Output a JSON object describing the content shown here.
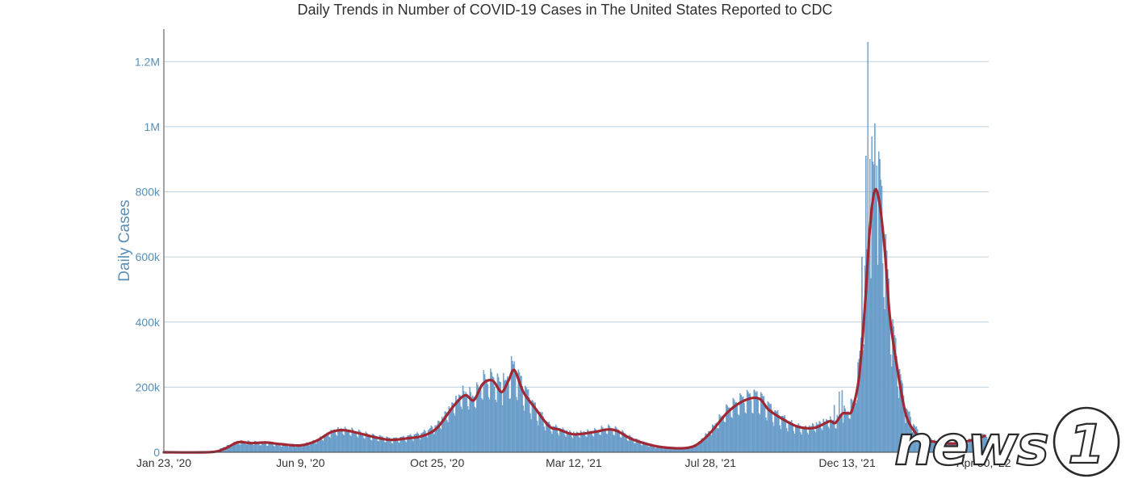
{
  "chart_data": {
    "type": "bar",
    "title": "Daily Trends in Number of COVID-19 Cases in The United States Reported to CDC",
    "xlabel": "",
    "ylabel": "Daily Cases",
    "ylim": [
      0,
      1300000
    ],
    "yticks": [
      0,
      200000,
      400000,
      600000,
      800000,
      1000000,
      1200000
    ],
    "ytick_labels": [
      "0",
      "200k",
      "400k",
      "600k",
      "800k",
      "1M",
      "1.2M"
    ],
    "xlim": [
      "2020-01-23",
      "2022-05-05"
    ],
    "xticks": [
      "2020-01-23",
      "2020-06-09",
      "2020-10-25",
      "2021-03-12",
      "2021-07-28",
      "2021-12-13",
      "2022-04-30"
    ],
    "xtick_labels": [
      "Jan 23, '20",
      "Jun 9, '20",
      "Oct 25, '20",
      "Mar 12, '21",
      "Jul 28, '21",
      "Dec 13, '21",
      "Apr 30, '22"
    ],
    "grid": true,
    "series": [
      {
        "kind": "bar",
        "color": "#7aaad3",
        "frequency": "daily",
        "start": "2020-01-23",
        "end": "2022-05-05",
        "sampled_values": [
          [
            "2020-01-23",
            0
          ],
          [
            "2020-03-01",
            200
          ],
          [
            "2020-03-15",
            3000
          ],
          [
            "2020-04-01",
            25000
          ],
          [
            "2020-04-10",
            31000
          ],
          [
            "2020-04-25",
            29000
          ],
          [
            "2020-05-10",
            26000
          ],
          [
            "2020-06-01",
            22000
          ],
          [
            "2020-06-09",
            20000
          ],
          [
            "2020-06-25",
            35000
          ],
          [
            "2020-07-10",
            60000
          ],
          [
            "2020-07-20",
            68000
          ],
          [
            "2020-08-01",
            63000
          ],
          [
            "2020-08-20",
            48000
          ],
          [
            "2020-09-10",
            38000
          ],
          [
            "2020-09-20",
            42000
          ],
          [
            "2020-10-10",
            55000
          ],
          [
            "2020-10-25",
            80000
          ],
          [
            "2020-11-10",
            140000
          ],
          [
            "2020-11-20",
            175000
          ],
          [
            "2020-12-01",
            165000
          ],
          [
            "2020-12-10",
            210000
          ],
          [
            "2020-12-20",
            215000
          ],
          [
            "2021-01-01",
            185000
          ],
          [
            "2021-01-10",
            250000
          ],
          [
            "2021-01-20",
            190000
          ],
          [
            "2021-02-01",
            130000
          ],
          [
            "2021-02-15",
            80000
          ],
          [
            "2021-03-01",
            65000
          ],
          [
            "2021-03-12",
            55000
          ],
          [
            "2021-04-01",
            62000
          ],
          [
            "2021-04-15",
            72000
          ],
          [
            "2021-04-25",
            65000
          ],
          [
            "2021-05-10",
            40000
          ],
          [
            "2021-06-01",
            18000
          ],
          [
            "2021-06-20",
            12000
          ],
          [
            "2021-07-05",
            13000
          ],
          [
            "2021-07-15",
            25000
          ],
          [
            "2021-07-28",
            65000
          ],
          [
            "2021-08-15",
            130000
          ],
          [
            "2021-09-01",
            160000
          ],
          [
            "2021-09-15",
            165000
          ],
          [
            "2021-10-01",
            115000
          ],
          [
            "2021-10-20",
            80000
          ],
          [
            "2021-11-01",
            70000
          ],
          [
            "2021-11-15",
            85000
          ],
          [
            "2021-11-25",
            95000
          ],
          [
            "2021-12-01",
            90000
          ],
          [
            "2021-12-10",
            120000
          ],
          [
            "2021-12-13",
            120000
          ],
          [
            "2021-12-20",
            150000
          ],
          [
            "2021-12-25",
            250000
          ],
          [
            "2021-12-31",
            480000
          ],
          [
            "2022-01-05",
            700000
          ],
          [
            "2022-01-10",
            820000
          ],
          [
            "2022-01-15",
            780000
          ],
          [
            "2022-01-20",
            620000
          ],
          [
            "2022-01-25",
            420000
          ],
          [
            "2022-02-01",
            280000
          ],
          [
            "2022-02-10",
            130000
          ],
          [
            "2022-02-20",
            70000
          ],
          [
            "2022-03-01",
            45000
          ],
          [
            "2022-03-15",
            30000
          ],
          [
            "2022-04-01",
            28000
          ],
          [
            "2022-04-15",
            35000
          ],
          [
            "2022-04-30",
            48000
          ],
          [
            "2022-05-05",
            50000
          ]
        ],
        "spikes": [
          [
            "2020-12-31",
            243000
          ],
          [
            "2021-01-08",
            295000
          ],
          [
            "2021-01-10",
            270000
          ],
          [
            "2021-11-30",
            145000
          ],
          [
            "2021-12-05",
            186000
          ],
          [
            "2021-12-08",
            190000
          ],
          [
            "2021-12-28",
            600000
          ],
          [
            "2022-01-01",
            910000
          ],
          [
            "2022-01-03",
            1260000
          ],
          [
            "2022-01-05",
            900000
          ],
          [
            "2022-01-07",
            970000
          ],
          [
            "2022-01-10",
            1010000
          ],
          [
            "2022-01-12",
            880000
          ],
          [
            "2022-01-18",
            580000
          ]
        ]
      },
      {
        "kind": "line",
        "color": "#a02834",
        "label_note": "7-day moving average",
        "values": [
          [
            "2020-01-23",
            0
          ],
          [
            "2020-03-10",
            500
          ],
          [
            "2020-03-25",
            12000
          ],
          [
            "2020-04-07",
            31000
          ],
          [
            "2020-04-20",
            28000
          ],
          [
            "2020-05-05",
            30000
          ],
          [
            "2020-05-20",
            25000
          ],
          [
            "2020-06-09",
            21000
          ],
          [
            "2020-06-25",
            35000
          ],
          [
            "2020-07-10",
            62000
          ],
          [
            "2020-07-22",
            68000
          ],
          [
            "2020-08-05",
            60000
          ],
          [
            "2020-08-25",
            45000
          ],
          [
            "2020-09-08",
            38000
          ],
          [
            "2020-09-25",
            43000
          ],
          [
            "2020-10-10",
            50000
          ],
          [
            "2020-10-25",
            75000
          ],
          [
            "2020-11-10",
            140000
          ],
          [
            "2020-11-22",
            175000
          ],
          [
            "2020-12-01",
            160000
          ],
          [
            "2020-12-10",
            210000
          ],
          [
            "2020-12-20",
            220000
          ],
          [
            "2020-12-29",
            185000
          ],
          [
            "2021-01-05",
            220000
          ],
          [
            "2021-01-11",
            252000
          ],
          [
            "2021-01-20",
            185000
          ],
          [
            "2021-02-01",
            135000
          ],
          [
            "2021-02-15",
            80000
          ],
          [
            "2021-02-25",
            70000
          ],
          [
            "2021-03-12",
            55000
          ],
          [
            "2021-04-01",
            62000
          ],
          [
            "2021-04-15",
            70000
          ],
          [
            "2021-04-25",
            65000
          ],
          [
            "2021-05-10",
            40000
          ],
          [
            "2021-06-01",
            20000
          ],
          [
            "2021-06-20",
            13000
          ],
          [
            "2021-07-05",
            14000
          ],
          [
            "2021-07-15",
            25000
          ],
          [
            "2021-07-28",
            60000
          ],
          [
            "2021-08-15",
            125000
          ],
          [
            "2021-09-01",
            160000
          ],
          [
            "2021-09-15",
            165000
          ],
          [
            "2021-09-25",
            130000
          ],
          [
            "2021-10-10",
            100000
          ],
          [
            "2021-10-25",
            78000
          ],
          [
            "2021-11-10",
            75000
          ],
          [
            "2021-11-25",
            95000
          ],
          [
            "2021-12-01",
            90000
          ],
          [
            "2021-12-08",
            118000
          ],
          [
            "2021-12-13",
            120000
          ],
          [
            "2021-12-18",
            130000
          ],
          [
            "2021-12-25",
            230000
          ],
          [
            "2021-12-31",
            450000
          ],
          [
            "2022-01-05",
            690000
          ],
          [
            "2022-01-10",
            805000
          ],
          [
            "2022-01-15",
            760000
          ],
          [
            "2022-01-20",
            620000
          ],
          [
            "2022-01-25",
            420000
          ],
          [
            "2022-02-01",
            270000
          ],
          [
            "2022-02-10",
            120000
          ],
          [
            "2022-02-20",
            60000
          ],
          [
            "2022-03-01",
            40000
          ],
          [
            "2022-03-15",
            30000
          ],
          [
            "2022-04-01",
            27000
          ],
          [
            "2022-04-15",
            35000
          ],
          [
            "2022-05-01",
            50000
          ]
        ]
      }
    ]
  },
  "watermark": {
    "text": "news",
    "mark": "1"
  }
}
